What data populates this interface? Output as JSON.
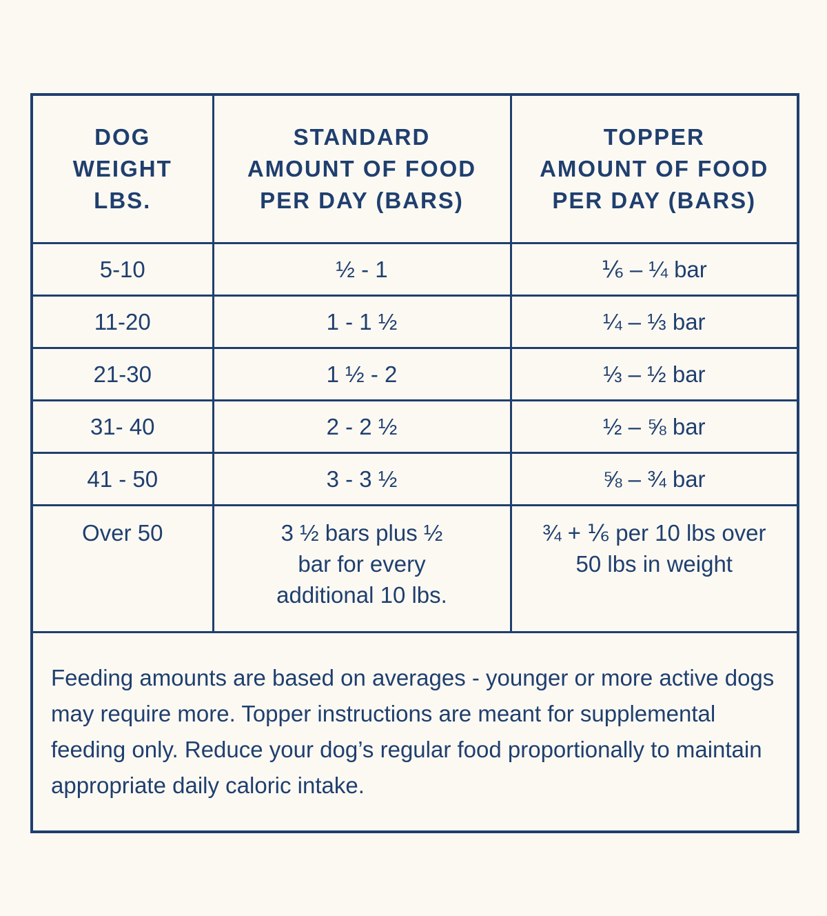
{
  "table": {
    "headers": [
      [
        "DOG",
        "WEIGHT",
        "LBS."
      ],
      [
        "STANDARD",
        "AMOUNT OF FOOD",
        "PER DAY (BARS)"
      ],
      [
        "TOPPER",
        "AMOUNT OF FOOD",
        "PER DAY (BARS)"
      ]
    ],
    "rows": [
      [
        "5-10",
        "½ - 1",
        "⅙ – ¼ bar"
      ],
      [
        "11-20",
        "1 - 1 ½",
        "¼ – ⅓ bar"
      ],
      [
        "21-30",
        "1 ½ - 2",
        "⅓ – ½ bar"
      ],
      [
        "31- 40",
        "2 - 2 ½",
        "½ – ⅝ bar"
      ],
      [
        "41 - 50",
        "3 - 3 ½",
        "⅝ – ¾ bar"
      ],
      [
        "Over 50",
        "3 ½ bars plus ½ bar for every additional 10 lbs.",
        "¾ + ⅙ per 10 lbs over 50 lbs in weight"
      ]
    ]
  },
  "note": "Feeding amounts are based on averages - younger or more active dogs may require more. Topper instructions are meant for supplemental feeding only. Reduce your dog’s regular food proportionally to maintain appropriate daily caloric intake."
}
